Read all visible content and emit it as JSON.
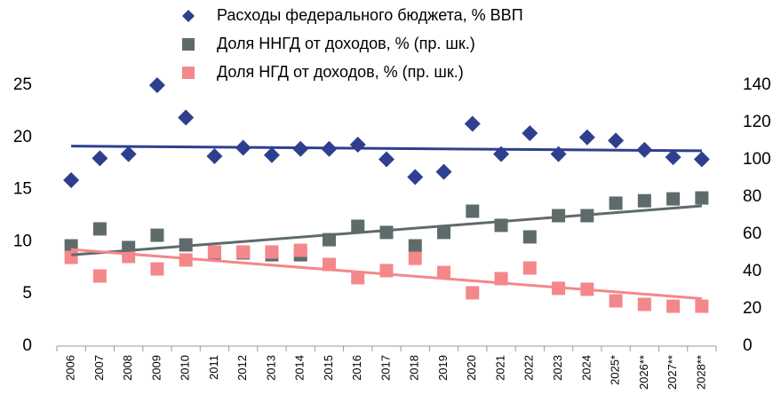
{
  "chart_data": {
    "type": "scatter",
    "categories": [
      "2006",
      "2007",
      "2008",
      "2009",
      "2010",
      "2011",
      "2012",
      "2013",
      "2014",
      "2015",
      "2016",
      "2017",
      "2018",
      "2019",
      "2020",
      "2021",
      "2022",
      "2023",
      "2024",
      "2025*",
      "2026**",
      "2027**",
      "2028**"
    ],
    "series": [
      {
        "name": "Расходы федерального бюджета, % ВВП",
        "color": "#2e3f8f",
        "marker": "diamond",
        "trendline": true,
        "values": [
          15.9,
          18.0,
          18.4,
          25.0,
          21.9,
          18.2,
          19.0,
          18.3,
          18.9,
          18.9,
          19.3,
          17.9,
          16.2,
          16.7,
          21.3,
          18.4,
          20.4,
          18.4,
          20.0,
          19.7,
          18.8,
          18.1,
          17.9
        ]
      },
      {
        "name": "Доля ННГД от доходов, % (пр. шк.)",
        "color": "#5f6b6b",
        "marker": "square",
        "axis": "y2",
        "trendline": true,
        "values": [
          53.8,
          62.9,
          52.9,
          59.5,
          54.3,
          50.0,
          50.0,
          49.0,
          49.0,
          57.1,
          64.3,
          61.0,
          53.8,
          61.0,
          72.4,
          64.8,
          58.6,
          70.0,
          70.0,
          76.7,
          78.0,
          79.0,
          79.5
        ]
      },
      {
        "name": "Доля НГД от доходов, % (пр. шк.)",
        "color": "#f4878a",
        "marker": "square",
        "axis": "y2",
        "trendline": true,
        "values": [
          47.6,
          37.6,
          48.1,
          41.4,
          46.2,
          50.5,
          50.5,
          50.5,
          51.4,
          43.8,
          36.7,
          40.5,
          47.1,
          39.5,
          28.6,
          36.2,
          41.9,
          31.0,
          30.5,
          24.3,
          22.4,
          21.4,
          21.4
        ]
      }
    ],
    "ylim": [
      0,
      25
    ],
    "yticks": [
      0,
      5,
      10,
      15,
      20,
      25
    ],
    "y2lim": [
      0,
      140
    ],
    "y2ticks": [
      0,
      20,
      40,
      60,
      80,
      100,
      120,
      140
    ]
  }
}
